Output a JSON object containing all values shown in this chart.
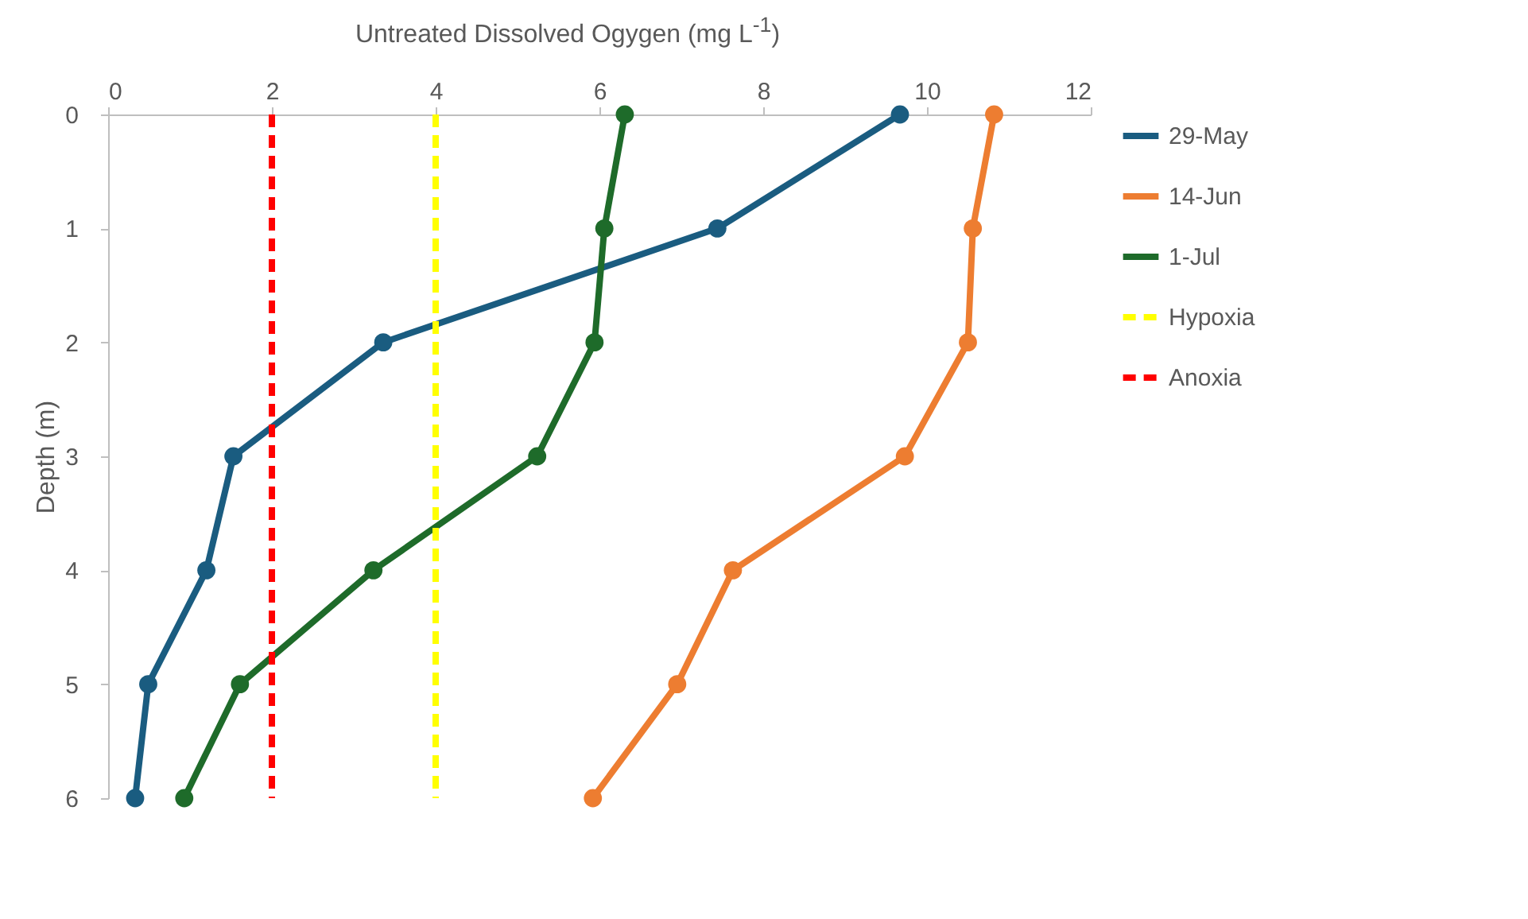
{
  "chart_data": {
    "type": "line",
    "xlabel": "Untreated Dissolved Ogygen (mg L$^{-1}$)",
    "ylabel": "Depth (m)",
    "xlim": [
      0,
      12
    ],
    "xticks": [
      0,
      2,
      4,
      6,
      8,
      10,
      12
    ],
    "ylim": [
      6,
      0
    ],
    "yticks": [
      0,
      1,
      2,
      3,
      4,
      5,
      6
    ],
    "grid": false,
    "legend": "right",
    "series": [
      {
        "name": "29-May",
        "color": "#1a5c80",
        "marker": "circle",
        "line_style": "solid",
        "x": [
          9.67,
          7.44,
          3.36,
          1.53,
          1.2,
          0.49,
          0.33
        ],
        "values": [
          0,
          1,
          2,
          3,
          4,
          5,
          6
        ]
      },
      {
        "name": "14-Jun",
        "color": "#ed7d31",
        "marker": "circle",
        "line_style": "solid",
        "x": [
          10.82,
          10.56,
          10.5,
          9.73,
          7.63,
          6.95,
          5.92
        ],
        "values": [
          0,
          1,
          2,
          3,
          4,
          5,
          6
        ]
      },
      {
        "name": "1-Jul",
        "color": "#1e6b2a",
        "marker": "circle",
        "line_style": "solid",
        "x": [
          6.31,
          6.06,
          5.94,
          5.24,
          3.24,
          1.61,
          0.93
        ],
        "values": [
          0,
          1,
          2,
          3,
          4,
          5,
          6
        ]
      },
      {
        "name": "Hypoxia",
        "color": "#ffff00",
        "marker": "none",
        "line_style": "dashed",
        "x": [
          4,
          4
        ],
        "values": [
          0,
          6
        ]
      },
      {
        "name": "Anoxia",
        "color": "#ff0000",
        "marker": "none",
        "line_style": "dashed",
        "x": [
          2,
          2
        ],
        "values": [
          0,
          6
        ]
      }
    ]
  }
}
